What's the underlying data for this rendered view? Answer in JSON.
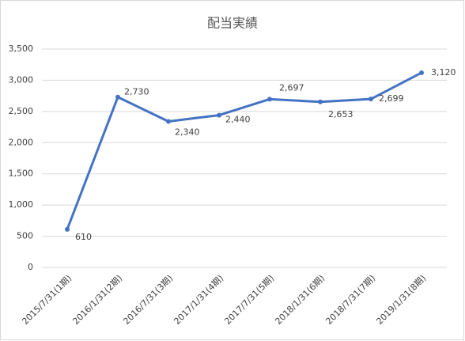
{
  "chart_data": {
    "type": "line",
    "title": "配当実績",
    "categories": [
      "2015/7/31(1期)",
      "2016/1/31(2期)",
      "2016/7/31(3期)",
      "2017/1/31(4期)",
      "2017/7/31(5期)",
      "2018/1/31(6期)",
      "2018/7/31(7期)",
      "2019/1/31(8期)"
    ],
    "values": [
      610,
      2730,
      2340,
      2440,
      2697,
      2653,
      2699,
      3120
    ],
    "value_labels": [
      "610",
      "2,730",
      "2,340",
      "2,440",
      "2,697",
      "2,653",
      "2,699",
      "3,120"
    ],
    "color": "#4472c4",
    "ylim": [
      0,
      3500
    ],
    "yticks": [
      0,
      500,
      {
        "value": 1000,
        "label": "1,000"
      },
      {
        "value": 1500,
        "label": "1,500"
      },
      {
        "value": 2000,
        "label": "2,000"
      },
      {
        "value": 2500,
        "label": "2,500"
      },
      {
        "value": 3000,
        "label": "3,000"
      },
      {
        "value": 3500,
        "label": "3,500"
      }
    ],
    "grid": true
  }
}
